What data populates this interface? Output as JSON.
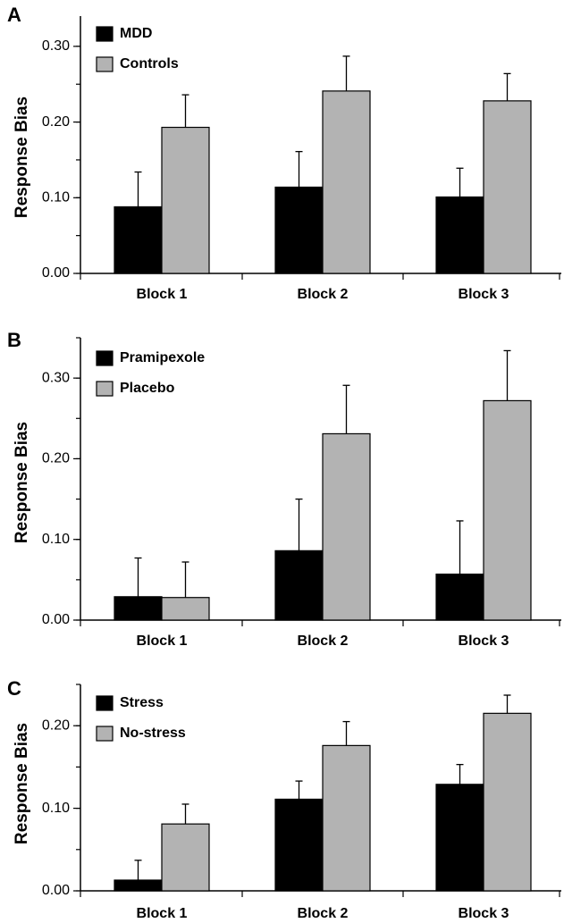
{
  "chart_data": [
    {
      "type": "bar",
      "panel_label": "A",
      "ylabel": "Response Bias",
      "ylim": [
        0,
        0.34
      ],
      "yticks": [
        "0.00",
        "0.10",
        "0.20",
        "0.30"
      ],
      "ytick_values": [
        0,
        0.1,
        0.2,
        0.3
      ],
      "minor_tick_step": 0.05,
      "categories": [
        "Block 1",
        "Block 2",
        "Block 3"
      ],
      "series": [
        {
          "name": "MDD",
          "color": "#000000",
          "values": [
            0.088,
            0.114,
            0.101
          ],
          "errors": [
            0.046,
            0.047,
            0.038
          ]
        },
        {
          "name": "Controls",
          "color": "#b3b3b3",
          "values": [
            0.193,
            0.241,
            0.228
          ],
          "errors": [
            0.043,
            0.046,
            0.036
          ]
        }
      ],
      "legend": "top-left",
      "grid": false
    },
    {
      "type": "bar",
      "panel_label": "B",
      "ylabel": "Response Bias",
      "ylim": [
        0,
        0.35
      ],
      "yticks": [
        "0.00",
        "0.10",
        "0.20",
        "0.30"
      ],
      "ytick_values": [
        0,
        0.1,
        0.2,
        0.3
      ],
      "minor_tick_step": 0.05,
      "categories": [
        "Block 1",
        "Block 2",
        "Block 3"
      ],
      "series": [
        {
          "name": "Pramipexole",
          "color": "#000000",
          "values": [
            0.029,
            0.086,
            0.057
          ],
          "errors": [
            0.048,
            0.064,
            0.066
          ]
        },
        {
          "name": "Placebo",
          "color": "#b3b3b3",
          "values": [
            0.028,
            0.231,
            0.272
          ],
          "errors": [
            0.044,
            0.06,
            0.062
          ]
        }
      ],
      "legend": "top-left",
      "grid": false
    },
    {
      "type": "bar",
      "panel_label": "C",
      "ylabel": "Response Bias",
      "ylim": [
        0,
        0.25
      ],
      "yticks": [
        "0.00",
        "0.10",
        "0.20"
      ],
      "ytick_values": [
        0,
        0.1,
        0.2
      ],
      "minor_tick_step": 0.05,
      "categories": [
        "Block 1",
        "Block 2",
        "Block 3"
      ],
      "series": [
        {
          "name": "Stress",
          "color": "#000000",
          "values": [
            0.013,
            0.111,
            0.129
          ],
          "errors": [
            0.024,
            0.022,
            0.024
          ]
        },
        {
          "name": "No-stress",
          "color": "#b3b3b3",
          "values": [
            0.081,
            0.176,
            0.215
          ],
          "errors": [
            0.024,
            0.029,
            0.022
          ]
        }
      ],
      "legend": "top-left",
      "grid": false
    }
  ]
}
